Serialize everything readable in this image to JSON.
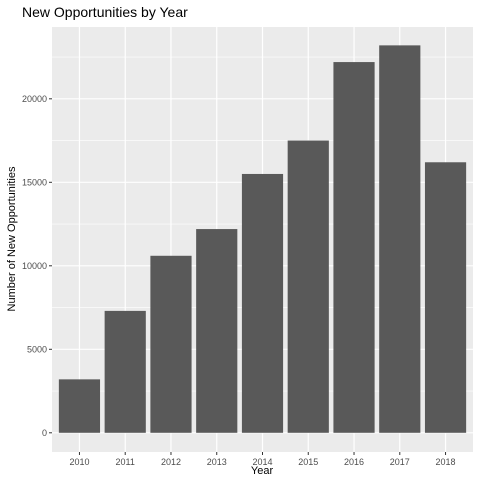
{
  "chart_data": {
    "type": "bar",
    "title": "New Opportunities by Year",
    "xlabel": "Year",
    "ylabel": "Number of New Opportunities",
    "categories": [
      "2010",
      "2011",
      "2012",
      "2013",
      "2014",
      "2015",
      "2016",
      "2017",
      "2018"
    ],
    "values": [
      3200,
      7300,
      10600,
      12200,
      15500,
      17500,
      22200,
      23200,
      16200
    ],
    "ylim": [
      -1150,
      24300
    ],
    "yticks": [
      0,
      5000,
      10000,
      15000,
      20000
    ],
    "ytick_labels": [
      "0",
      "5000",
      "10000",
      "15000",
      "20000"
    ],
    "grid": true,
    "colors": {
      "panel": "#ebebeb",
      "bar": "#595959",
      "grid": "#ffffff",
      "text": "#000000",
      "tick_text": "#4d4d4d"
    }
  }
}
